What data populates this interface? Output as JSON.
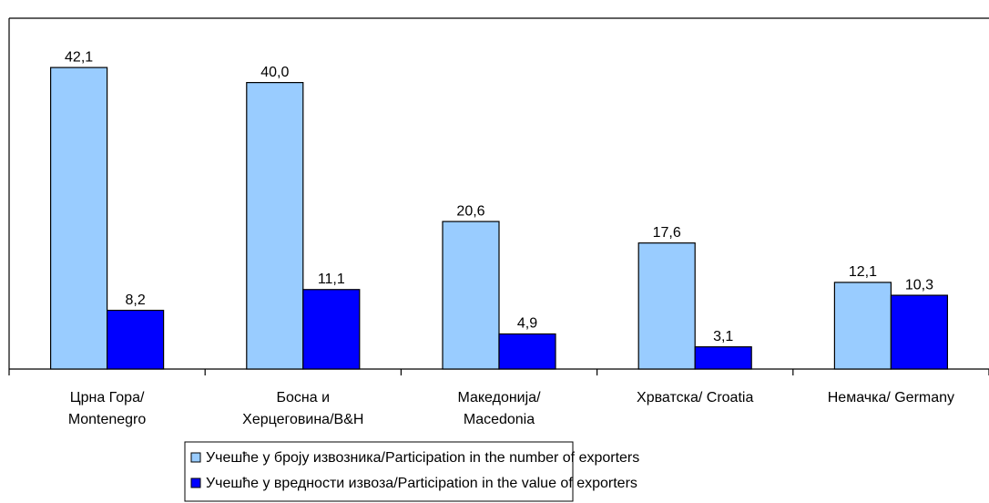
{
  "chart_data": {
    "type": "bar",
    "categories": [
      [
        "Црна Гора/",
        "Montenegro"
      ],
      [
        "Босна и",
        "Херцеговина/B&H"
      ],
      [
        "Македонија/",
        "Macedonia"
      ],
      [
        "Хрватска/   Croatia"
      ],
      [
        "Немачка/  Germany"
      ]
    ],
    "series": [
      {
        "name": "Учешће у броју извозника/Participation in the number of exporters",
        "color": "#99ccff",
        "values": [
          42.1,
          40.0,
          20.6,
          17.6,
          12.1
        ],
        "value_labels": [
          "42,1",
          "40,0",
          "20,6",
          "17,6",
          "12,1"
        ]
      },
      {
        "name": "Учешће у вредности извоза/Participation in the value of exporters",
        "color": "#0000ff",
        "values": [
          8.2,
          11.1,
          4.9,
          3.1,
          10.3
        ],
        "value_labels": [
          "8,2",
          "11,1",
          "4,9",
          "3,1",
          "10,3"
        ]
      }
    ]
  }
}
